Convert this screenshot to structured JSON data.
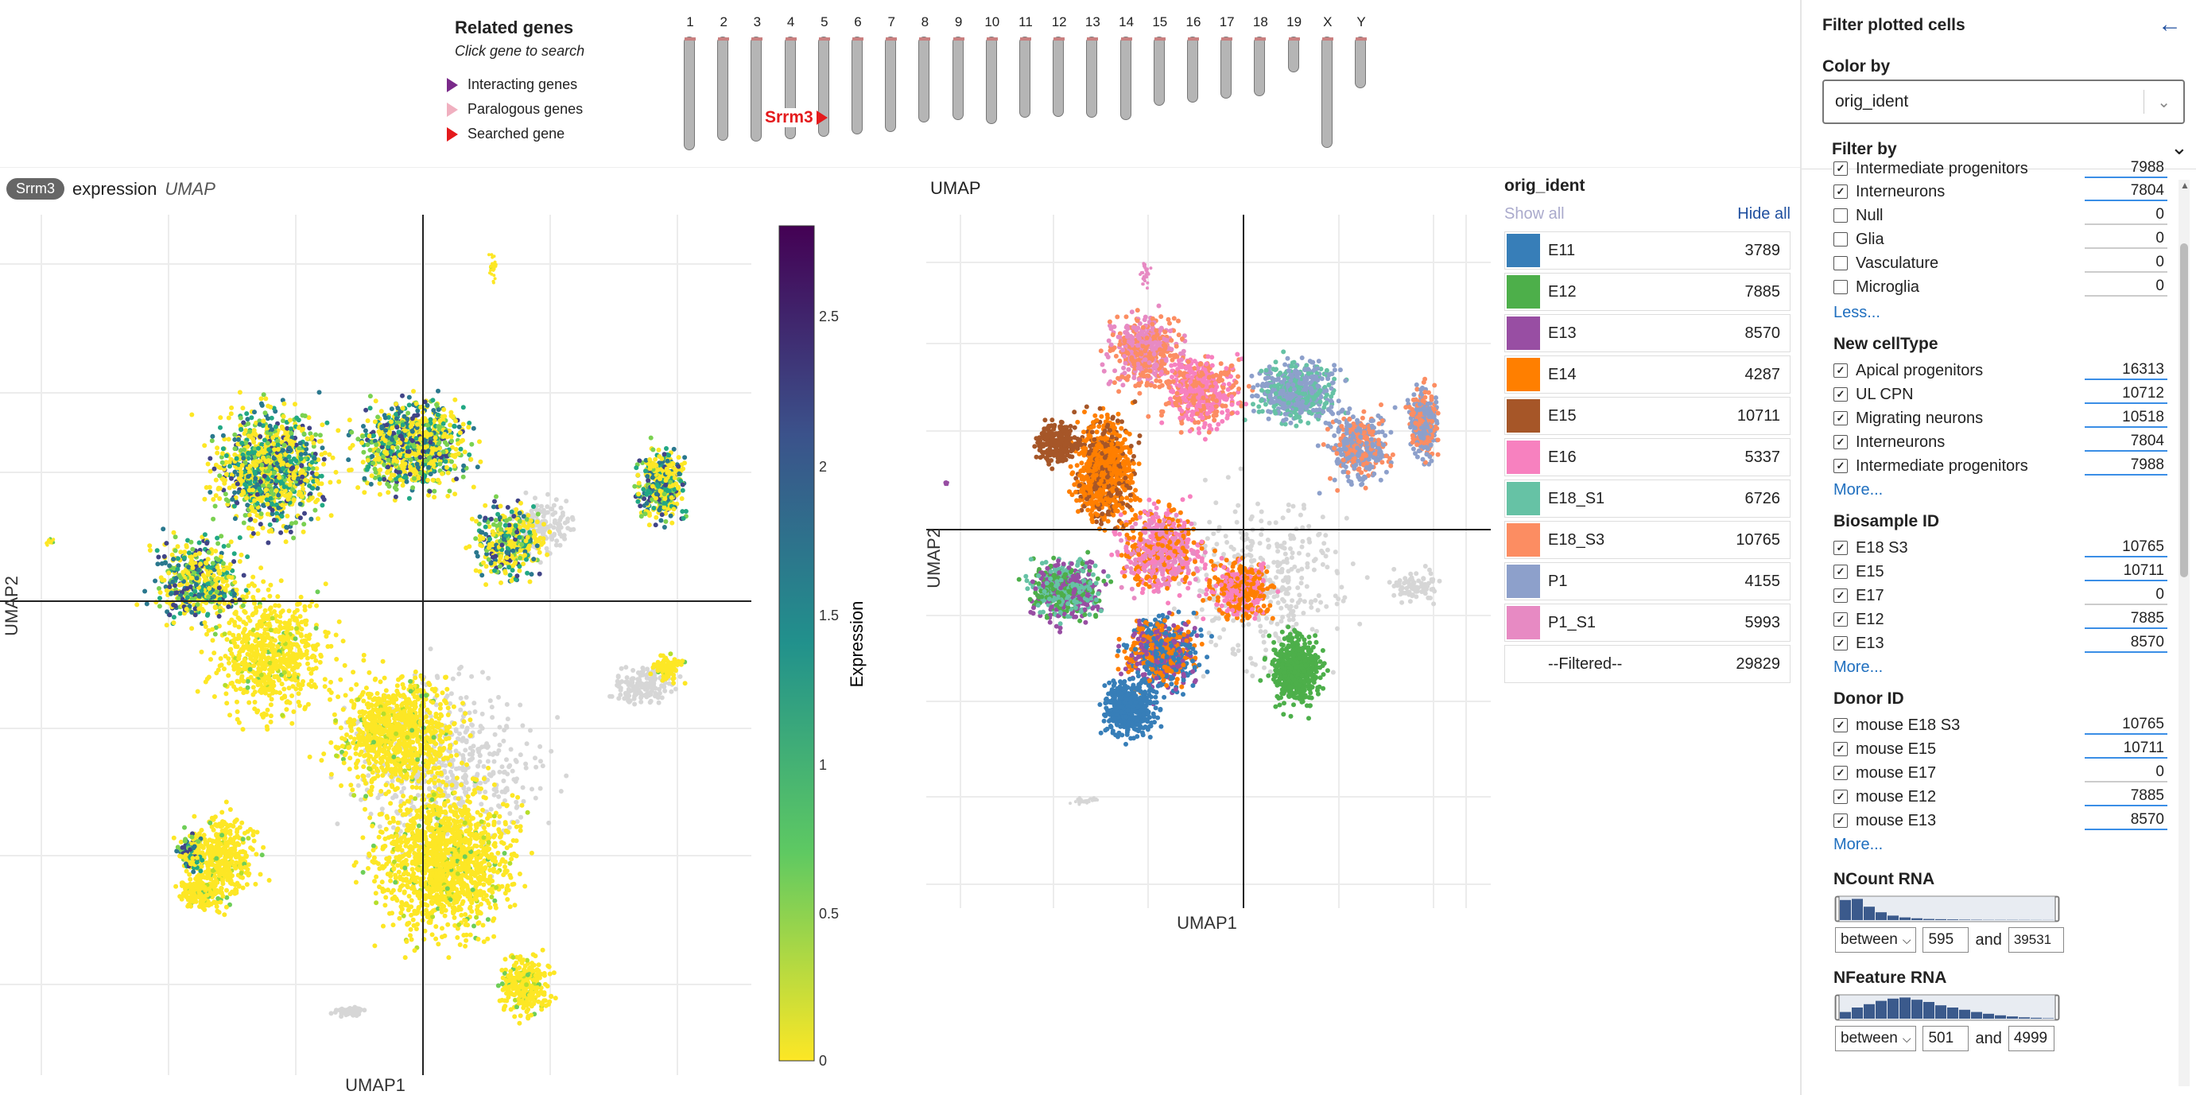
{
  "related_genes": {
    "title": "Related genes",
    "subtitle": "Click gene to search",
    "legend": [
      {
        "label": "Interacting genes",
        "color": "#7a2a8a"
      },
      {
        "label": "Paralogous genes",
        "color": "#f0b0c0"
      },
      {
        "label": "Searched gene",
        "color": "#e41a1c"
      }
    ],
    "chromosomes": [
      {
        "label": "1",
        "len": 0.95
      },
      {
        "label": "2",
        "len": 0.87
      },
      {
        "label": "3",
        "len": 0.88
      },
      {
        "label": "4",
        "len": 0.86
      },
      {
        "label": "5",
        "len": 0.84
      },
      {
        "label": "6",
        "len": 0.82
      },
      {
        "label": "7",
        "len": 0.8
      },
      {
        "label": "8",
        "len": 0.72
      },
      {
        "label": "9",
        "len": 0.7
      },
      {
        "label": "10",
        "len": 0.73
      },
      {
        "label": "11",
        "len": 0.68
      },
      {
        "label": "12",
        "len": 0.67
      },
      {
        "label": "13",
        "len": 0.68
      },
      {
        "label": "14",
        "len": 0.7
      },
      {
        "label": "15",
        "len": 0.58
      },
      {
        "label": "16",
        "len": 0.55
      },
      {
        "label": "17",
        "len": 0.52
      },
      {
        "label": "18",
        "len": 0.5
      },
      {
        "label": "19",
        "len": 0.3
      },
      {
        "label": "X",
        "len": 0.93
      },
      {
        "label": "Y",
        "len": 0.43
      }
    ],
    "searched_gene": "Srrm3"
  },
  "expr_plot": {
    "gene_badge": "Srrm3",
    "title_main": "expression",
    "title_italic": "UMAP",
    "xlabel": "UMAP1",
    "ylabel": "UMAP2",
    "colorbar_title": "Expression",
    "colorbar_ticks": [
      "2.5",
      "2",
      "1.5",
      "1",
      "0.5",
      "0"
    ]
  },
  "umap_plot": {
    "title": "UMAP",
    "xlabel": "UMAP1",
    "ylabel": "UMAP2"
  },
  "orig_legend": {
    "title": "orig_ident",
    "show_all": "Show all",
    "hide_all": "Hide all",
    "items": [
      {
        "name": "E11",
        "count": "3789",
        "color": "#377eb8"
      },
      {
        "name": "E12",
        "count": "7885",
        "color": "#4daf4a"
      },
      {
        "name": "E13",
        "count": "8570",
        "color": "#984ea3"
      },
      {
        "name": "E14",
        "count": "4287",
        "color": "#ff7f00"
      },
      {
        "name": "E15",
        "count": "10711",
        "color": "#a65628"
      },
      {
        "name": "E16",
        "count": "5337",
        "color": "#f781bf"
      },
      {
        "name": "E18_S1",
        "count": "6726",
        "color": "#66c2a5"
      },
      {
        "name": "E18_S3",
        "count": "10765",
        "color": "#fc8d62"
      },
      {
        "name": "P1",
        "count": "4155",
        "color": "#8da0cb"
      },
      {
        "name": "P1_S1",
        "count": "5993",
        "color": "#e78ac3"
      },
      {
        "name": "--Filtered--",
        "count": "29829",
        "color": "#ffffff"
      }
    ]
  },
  "sidebar": {
    "title": "Filter plotted cells",
    "color_by_label": "Color by",
    "color_by_value": "orig_ident",
    "filter_by_label": "Filter by",
    "partial_row": "Intermediate progenitors",
    "partial_count": "7988",
    "cell_class": {
      "items": [
        {
          "label": "Interneurons",
          "count": "7804",
          "checked": true
        },
        {
          "label": "Null",
          "count": "0",
          "checked": false
        },
        {
          "label": "Glia",
          "count": "0",
          "checked": false
        },
        {
          "label": "Vasculature",
          "count": "0",
          "checked": false
        },
        {
          "label": "Microglia",
          "count": "0",
          "checked": false
        }
      ],
      "toggle": "Less..."
    },
    "new_celltype": {
      "title": "New cellType",
      "items": [
        {
          "label": "Apical progenitors",
          "count": "16313",
          "checked": true
        },
        {
          "label": "UL CPN",
          "count": "10712",
          "checked": true
        },
        {
          "label": "Migrating neurons",
          "count": "10518",
          "checked": true
        },
        {
          "label": "Interneurons",
          "count": "7804",
          "checked": true
        },
        {
          "label": "Intermediate progenitors",
          "count": "7988",
          "checked": true
        }
      ],
      "toggle": "More..."
    },
    "biosample": {
      "title": "Biosample ID",
      "items": [
        {
          "label": "E18 S3",
          "count": "10765",
          "checked": true
        },
        {
          "label": "E15",
          "count": "10711",
          "checked": true
        },
        {
          "label": "E17",
          "count": "0",
          "checked": true
        },
        {
          "label": "E12",
          "count": "7885",
          "checked": true
        },
        {
          "label": "E13",
          "count": "8570",
          "checked": true
        }
      ],
      "toggle": "More..."
    },
    "donor": {
      "title": "Donor ID",
      "items": [
        {
          "label": "mouse E18 S3",
          "count": "10765",
          "checked": true
        },
        {
          "label": "mouse E15",
          "count": "10711",
          "checked": true
        },
        {
          "label": "mouse E17",
          "count": "0",
          "checked": true
        },
        {
          "label": "mouse E12",
          "count": "7885",
          "checked": true
        },
        {
          "label": "mouse E13",
          "count": "8570",
          "checked": true
        }
      ],
      "toggle": "More..."
    },
    "ncount": {
      "title": "NCount RNA",
      "mode": "between",
      "min": "595",
      "and": "and",
      "max": "39531",
      "hist": [
        0.9,
        0.95,
        0.6,
        0.35,
        0.2,
        0.12,
        0.08,
        0.05,
        0.04,
        0.03,
        0.02,
        0.015,
        0.01,
        0.01,
        0.01,
        0.008,
        0.006,
        0.005
      ]
    },
    "nfeature": {
      "title": "NFeature RNA",
      "mode": "between",
      "min": "501",
      "and": "and",
      "max": "4999",
      "hist": [
        0.3,
        0.5,
        0.65,
        0.8,
        0.9,
        0.95,
        0.85,
        0.75,
        0.6,
        0.5,
        0.4,
        0.3,
        0.22,
        0.15,
        0.1,
        0.06,
        0.04,
        0.02
      ]
    }
  }
}
